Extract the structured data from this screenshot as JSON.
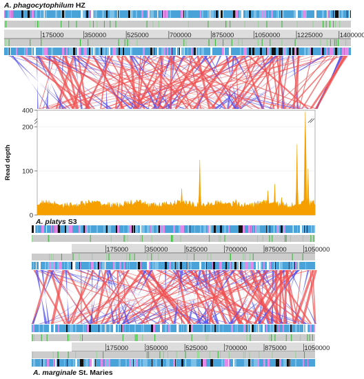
{
  "genomes": {
    "top": {
      "species": "A. phagocytophilum",
      "strain": "HZ"
    },
    "middle": {
      "species": "A. platys",
      "strain": "S3"
    },
    "bottom": {
      "species": "A. marginale",
      "strain": "St. Maries"
    }
  },
  "rulers": {
    "top": [
      "175000",
      "350000",
      "525000",
      "700000",
      "875000",
      "1050000",
      "1225000",
      "1400000"
    ],
    "middle": [
      "175000",
      "350000",
      "525000",
      "700000",
      "875000",
      "1050000"
    ],
    "bottom": [
      "175000",
      "350000",
      "525000",
      "700000",
      "875000",
      "1050000"
    ]
  },
  "colors": {
    "forward_match": "#f05050",
    "reverse_match": "#5050f0",
    "coverage_fill": "#f5a000",
    "gene_blue": "#4aa3d8",
    "gene_pink": "#e389e8",
    "gene_black": "#111111",
    "gene_green": "#2db82d",
    "track_gray": "#cccccc"
  },
  "chart_data": {
    "type": "area",
    "title": "",
    "xlabel": "",
    "ylabel": "Read depth",
    "yticks": [
      "0",
      "100",
      "200",
      "400"
    ],
    "axis_break": true,
    "ylim": [
      0,
      400
    ],
    "baseline_depth": 25,
    "peaks": [
      {
        "x_frac": 0.52,
        "depth": 60
      },
      {
        "x_frac": 0.585,
        "depth": 125
      },
      {
        "x_frac": 0.715,
        "depth": 35
      },
      {
        "x_frac": 0.83,
        "depth": 55
      },
      {
        "x_frac": 0.855,
        "depth": 70
      },
      {
        "x_frac": 0.88,
        "depth": 40
      },
      {
        "x_frac": 0.935,
        "depth": 160
      },
      {
        "x_frac": 0.965,
        "depth": 380
      },
      {
        "x_frac": 0.975,
        "depth": 105
      }
    ]
  }
}
